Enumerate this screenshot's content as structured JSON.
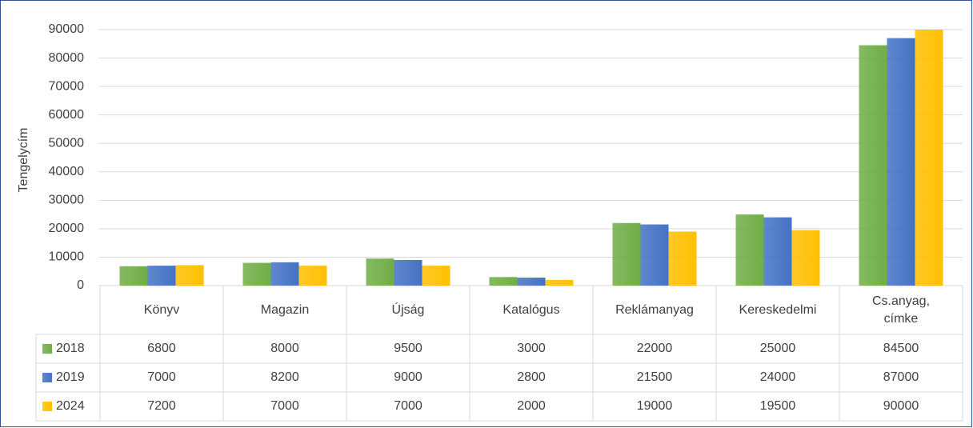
{
  "chart_data": {
    "type": "bar",
    "y_axis_label": "Tengelycím",
    "categories": [
      "Könyv",
      "Magazin",
      "Újság",
      "Katalógus",
      "Reklámanyag",
      "Kereskedelmi",
      "Cs.anyag, címke"
    ],
    "series": [
      {
        "name": "2018",
        "color": "#70ad47",
        "values": [
          6800,
          8000,
          9500,
          3000,
          22000,
          25000,
          84500
        ]
      },
      {
        "name": "2019",
        "color": "#4472c4",
        "values": [
          7000,
          8200,
          9000,
          2800,
          21500,
          24000,
          87000
        ]
      },
      {
        "name": "2024",
        "color": "#ffc000",
        "values": [
          7200,
          7000,
          7000,
          2000,
          19000,
          19500,
          90000
        ]
      }
    ],
    "ylim": [
      0,
      90000
    ],
    "yticks": [
      0,
      10000,
      20000,
      30000,
      40000,
      50000,
      60000,
      70000,
      80000,
      90000
    ],
    "grid": true
  }
}
